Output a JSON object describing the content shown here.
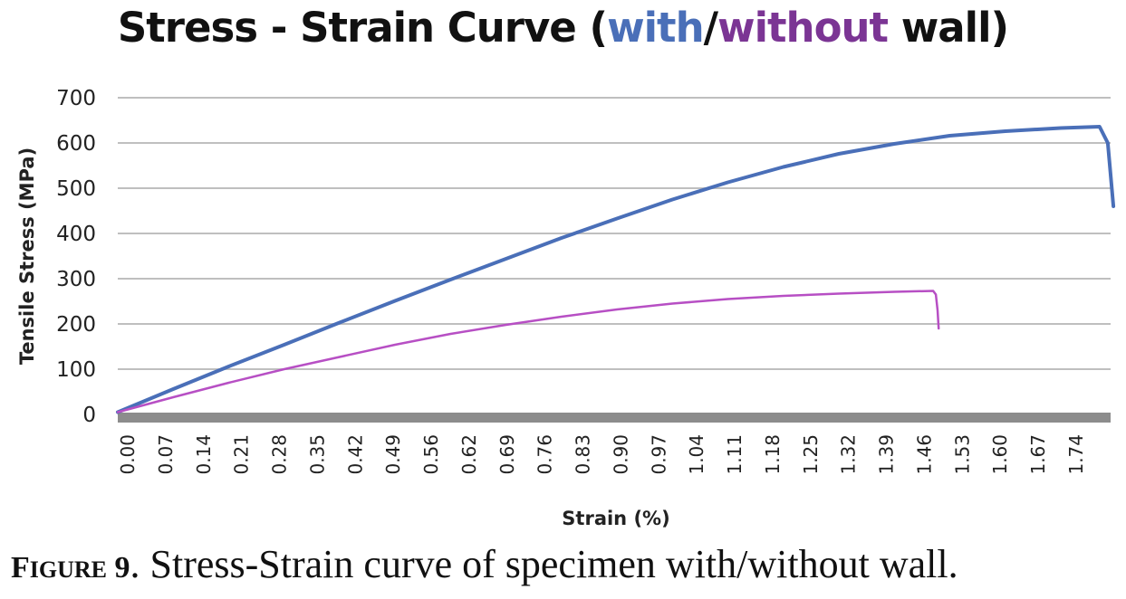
{
  "title": {
    "part1": "Stress - Strain Curve (",
    "with": "with",
    "slash": "/",
    "without": "without",
    "part2": " wall)"
  },
  "caption": {
    "prefix_big": "F",
    "prefix_small": "IGURE",
    "number": " 9",
    "text": ". Stress-Strain curve of specimen with/without wall."
  },
  "colors": {
    "with_series": "#4a6fb8",
    "without_series": "#b74fc4",
    "grid": "#bfbfbf",
    "x_axis_band": "#8c8c8c"
  },
  "chart_data": {
    "type": "line",
    "xlabel": "Strain (%)",
    "ylabel": "Tensile Stress (MPa)",
    "xlim": [
      0,
      1.79
    ],
    "ylim": [
      0,
      700
    ],
    "x_ticks": [
      "0.00",
      "0.07",
      "0.14",
      "0.21",
      "0.28",
      "0.35",
      "0.42",
      "0.49",
      "0.56",
      "0.62",
      "0.69",
      "0.76",
      "0.83",
      "0.90",
      "0.97",
      "1.04",
      "1.11",
      "1.18",
      "1.25",
      "1.32",
      "1.39",
      "1.46",
      "1.53",
      "1.60",
      "1.67",
      "1.74"
    ],
    "y_ticks": [
      0,
      100,
      200,
      300,
      400,
      500,
      600,
      700
    ],
    "grid": "horizontal",
    "legend": "none (series identified by colored title words)",
    "series": [
      {
        "name": "with",
        "color": "#4a6fb8",
        "points": [
          [
            0.0,
            5
          ],
          [
            0.1,
            56
          ],
          [
            0.2,
            106
          ],
          [
            0.3,
            154
          ],
          [
            0.4,
            203
          ],
          [
            0.5,
            251
          ],
          [
            0.6,
            298
          ],
          [
            0.7,
            344
          ],
          [
            0.8,
            390
          ],
          [
            0.9,
            433
          ],
          [
            1.0,
            475
          ],
          [
            1.1,
            513
          ],
          [
            1.2,
            547
          ],
          [
            1.3,
            576
          ],
          [
            1.4,
            598
          ],
          [
            1.5,
            616
          ],
          [
            1.6,
            626
          ],
          [
            1.7,
            633
          ],
          [
            1.77,
            636
          ],
          [
            1.785,
            600
          ],
          [
            1.795,
            460
          ]
        ]
      },
      {
        "name": "without",
        "color": "#b74fc4",
        "points": [
          [
            0.0,
            5
          ],
          [
            0.1,
            38
          ],
          [
            0.2,
            70
          ],
          [
            0.3,
            100
          ],
          [
            0.4,
            127
          ],
          [
            0.5,
            154
          ],
          [
            0.6,
            178
          ],
          [
            0.7,
            198
          ],
          [
            0.8,
            216
          ],
          [
            0.9,
            232
          ],
          [
            1.0,
            245
          ],
          [
            1.1,
            255
          ],
          [
            1.2,
            262
          ],
          [
            1.3,
            267
          ],
          [
            1.4,
            271
          ],
          [
            1.47,
            273
          ],
          [
            1.475,
            265
          ],
          [
            1.478,
            230
          ],
          [
            1.48,
            190
          ]
        ]
      }
    ]
  }
}
